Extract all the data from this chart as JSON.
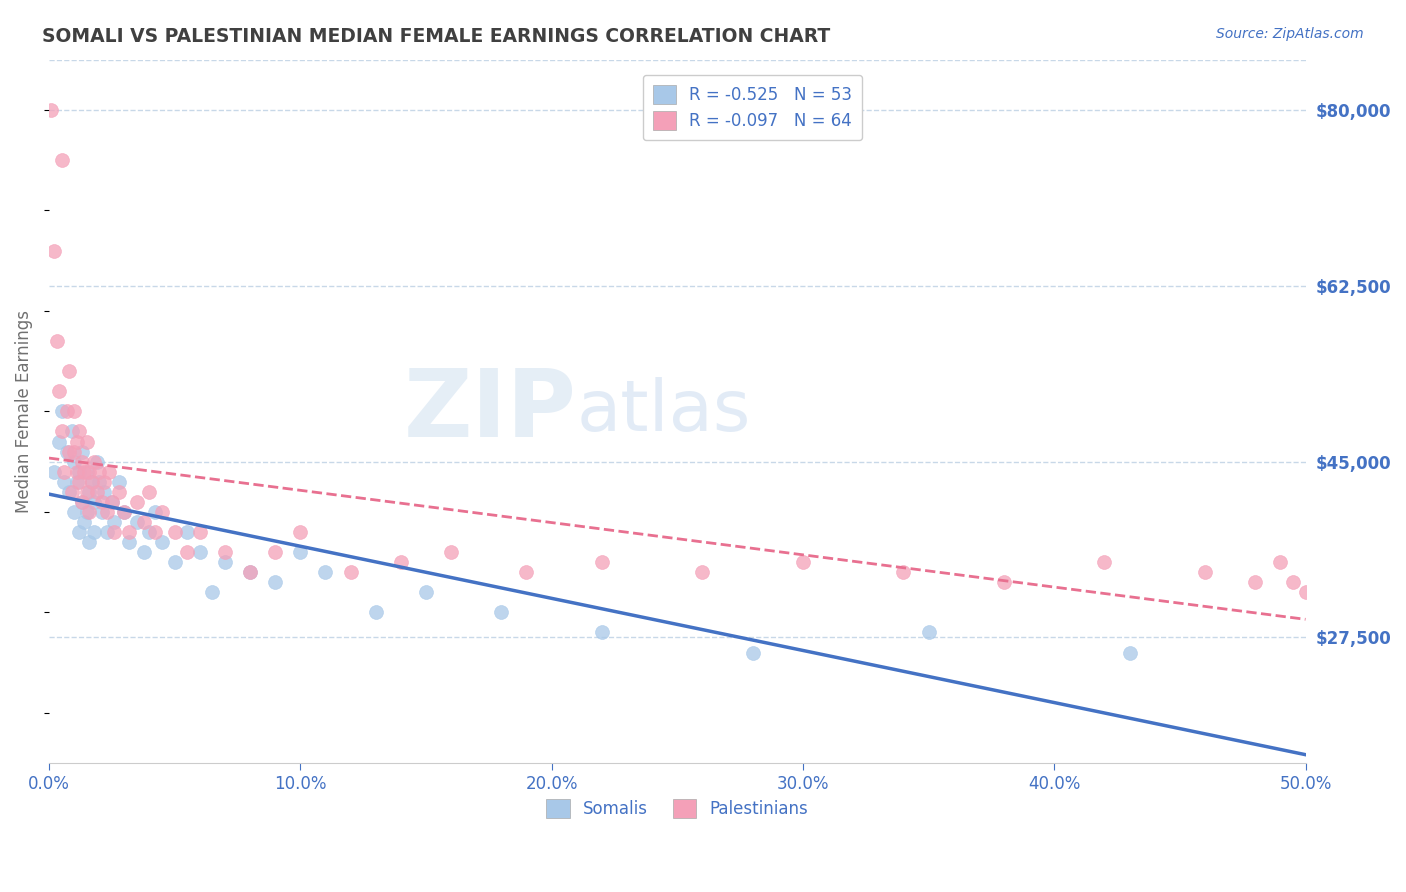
{
  "title": "SOMALI VS PALESTINIAN MEDIAN FEMALE EARNINGS CORRELATION CHART",
  "source": "Source: ZipAtlas.com",
  "ylabel": "Median Female Earnings",
  "xlim": [
    0.0,
    0.5
  ],
  "ylim": [
    15000,
    85000
  ],
  "yticks": [
    27500,
    45000,
    62500,
    80000
  ],
  "ytick_labels": [
    "$27,500",
    "$45,000",
    "$62,500",
    "$80,000"
  ],
  "xtick_vals": [
    0.0,
    0.1,
    0.2,
    0.3,
    0.4,
    0.5
  ],
  "xtick_labels": [
    "0.0%",
    "10.0%",
    "20.0%",
    "30.0%",
    "40.0%",
    "50.0%"
  ],
  "somali_R": -0.525,
  "somali_N": 53,
  "palestinian_R": -0.097,
  "palestinian_N": 64,
  "somali_color": "#A8C8E8",
  "palestinian_color": "#F4A0B8",
  "somali_line_color": "#4472C4",
  "palestinian_line_color": "#E87090",
  "background_color": "#FFFFFF",
  "grid_color": "#C8D8E8",
  "title_color": "#404040",
  "axis_label_color": "#4472C4",
  "ylabel_color": "#707070",
  "somali_x": [
    0.002,
    0.004,
    0.005,
    0.006,
    0.007,
    0.008,
    0.009,
    0.01,
    0.01,
    0.011,
    0.012,
    0.012,
    0.013,
    0.013,
    0.014,
    0.015,
    0.015,
    0.016,
    0.016,
    0.017,
    0.018,
    0.018,
    0.019,
    0.02,
    0.021,
    0.022,
    0.023,
    0.025,
    0.026,
    0.028,
    0.03,
    0.032,
    0.035,
    0.038,
    0.04,
    0.042,
    0.045,
    0.05,
    0.055,
    0.06,
    0.065,
    0.07,
    0.08,
    0.09,
    0.1,
    0.11,
    0.13,
    0.15,
    0.18,
    0.22,
    0.28,
    0.35,
    0.43
  ],
  "somali_y": [
    44000,
    47000,
    50000,
    43000,
    46000,
    42000,
    48000,
    45000,
    40000,
    43000,
    38000,
    44000,
    41000,
    46000,
    39000,
    44000,
    40000,
    42000,
    37000,
    43000,
    41000,
    38000,
    45000,
    43000,
    40000,
    42000,
    38000,
    41000,
    39000,
    43000,
    40000,
    37000,
    39000,
    36000,
    38000,
    40000,
    37000,
    35000,
    38000,
    36000,
    32000,
    35000,
    34000,
    33000,
    36000,
    34000,
    30000,
    32000,
    30000,
    28000,
    26000,
    28000,
    26000
  ],
  "palestinian_x": [
    0.001,
    0.002,
    0.003,
    0.004,
    0.005,
    0.005,
    0.006,
    0.007,
    0.008,
    0.008,
    0.009,
    0.01,
    0.01,
    0.011,
    0.011,
    0.012,
    0.012,
    0.013,
    0.013,
    0.014,
    0.015,
    0.015,
    0.016,
    0.016,
    0.017,
    0.018,
    0.019,
    0.02,
    0.021,
    0.022,
    0.023,
    0.024,
    0.025,
    0.026,
    0.028,
    0.03,
    0.032,
    0.035,
    0.038,
    0.04,
    0.042,
    0.045,
    0.05,
    0.055,
    0.06,
    0.07,
    0.08,
    0.09,
    0.1,
    0.12,
    0.14,
    0.16,
    0.19,
    0.22,
    0.26,
    0.3,
    0.34,
    0.38,
    0.42,
    0.46,
    0.48,
    0.49,
    0.495,
    0.5
  ],
  "palestinian_y": [
    80000,
    66000,
    57000,
    52000,
    48000,
    75000,
    44000,
    50000,
    46000,
    54000,
    42000,
    46000,
    50000,
    44000,
    47000,
    43000,
    48000,
    41000,
    45000,
    44000,
    42000,
    47000,
    44000,
    40000,
    43000,
    45000,
    42000,
    44000,
    41000,
    43000,
    40000,
    44000,
    41000,
    38000,
    42000,
    40000,
    38000,
    41000,
    39000,
    42000,
    38000,
    40000,
    38000,
    36000,
    38000,
    36000,
    34000,
    36000,
    38000,
    34000,
    35000,
    36000,
    34000,
    35000,
    34000,
    35000,
    34000,
    33000,
    35000,
    34000,
    33000,
    35000,
    33000,
    32000
  ],
  "legend_R_label": [
    "R = -0.525   N = 53",
    "R = -0.097   N = 64"
  ],
  "legend_bottom_labels": [
    "Somalis",
    "Palestinians"
  ]
}
